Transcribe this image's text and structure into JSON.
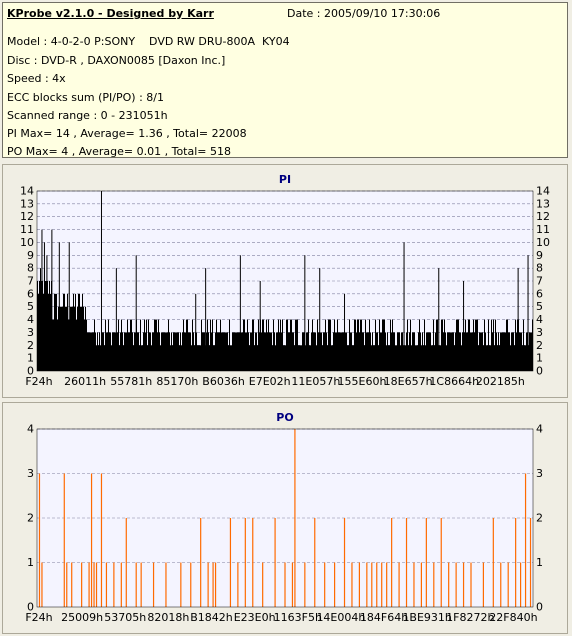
{
  "header": {
    "title": "KProbe v2.1.0 - Designed by Karr",
    "date": "Date : 2005/09/10 17:30:06"
  },
  "info": {
    "model": "Model : 4-0-2-0 P:SONY    DVD RW DRU-800A  KY04",
    "disc": "Disc : DVD-R , DAXON0085 [Daxon Inc.]",
    "speed": "Speed : 4x",
    "ecc": "ECC blocks sum (PI/PO) : 8/1",
    "range": "Scanned range : 0 - 231051h",
    "pi": "PI Max= 14 , Average= 1.36 , Total= 22008",
    "po": "PO Max= 4 , Average= 0.01 , Total= 518"
  },
  "colors": {
    "panel_bg": "#ffffe1",
    "window_bg": "#f0eee4",
    "plot_bg": "#f4f4ff",
    "pi_bar": "#000000",
    "po_bar": "#ff6a00",
    "title": "#000080",
    "grid": "#8080a0"
  },
  "chart_data": [
    {
      "type": "bar",
      "title": "PI",
      "xlabel": "",
      "ylabel": "",
      "ylim": [
        0,
        14
      ],
      "yticks": [
        0,
        1,
        2,
        3,
        4,
        5,
        6,
        7,
        8,
        9,
        10,
        11,
        12,
        13,
        14
      ],
      "xtick_labels": [
        "F24h",
        "26011h",
        "55781h",
        "85170h",
        "B6036h",
        "E7E02h",
        "11E057h",
        "155E60h",
        "18E657h",
        "1C8664h",
        "202185h"
      ],
      "grid": true,
      "dense_profile": [
        {
          "segment": "0%-3%",
          "typical_max": 8,
          "baseline": 5
        },
        {
          "segment": "3%-10%",
          "typical_max": 6,
          "baseline": 4
        },
        {
          "segment": "10%-100%",
          "typical_max": 4,
          "baseline": 2
        }
      ],
      "peaks": [
        {
          "x": 0.01,
          "y": 11
        },
        {
          "x": 0.015,
          "y": 10
        },
        {
          "x": 0.02,
          "y": 9
        },
        {
          "x": 0.03,
          "y": 11
        },
        {
          "x": 0.045,
          "y": 10
        },
        {
          "x": 0.065,
          "y": 10
        },
        {
          "x": 0.13,
          "y": 14
        },
        {
          "x": 0.16,
          "y": 8
        },
        {
          "x": 0.2,
          "y": 9
        },
        {
          "x": 0.32,
          "y": 6
        },
        {
          "x": 0.34,
          "y": 8
        },
        {
          "x": 0.41,
          "y": 9
        },
        {
          "x": 0.45,
          "y": 7
        },
        {
          "x": 0.54,
          "y": 9
        },
        {
          "x": 0.57,
          "y": 8
        },
        {
          "x": 0.62,
          "y": 6
        },
        {
          "x": 0.74,
          "y": 10
        },
        {
          "x": 0.81,
          "y": 8
        },
        {
          "x": 0.86,
          "y": 7
        },
        {
          "x": 0.97,
          "y": 8
        },
        {
          "x": 0.99,
          "y": 9
        }
      ]
    },
    {
      "type": "bar",
      "title": "PO",
      "xlabel": "",
      "ylabel": "",
      "ylim": [
        0,
        4
      ],
      "yticks": [
        0,
        1,
        2,
        3,
        4
      ],
      "xtick_labels": [
        "F24h",
        "25009h",
        "53705h",
        "82018h",
        "B1842h",
        "E23E0h",
        "1163F5h",
        "14E004h",
        "184F64h",
        "1BE931h",
        "1F8272h",
        "22F840h"
      ],
      "grid": true,
      "spikes": [
        {
          "x": 0.005,
          "y": 3
        },
        {
          "x": 0.01,
          "y": 1
        },
        {
          "x": 0.055,
          "y": 3
        },
        {
          "x": 0.06,
          "y": 1
        },
        {
          "x": 0.07,
          "y": 1
        },
        {
          "x": 0.09,
          "y": 1
        },
        {
          "x": 0.105,
          "y": 1
        },
        {
          "x": 0.11,
          "y": 3
        },
        {
          "x": 0.115,
          "y": 1
        },
        {
          "x": 0.12,
          "y": 1
        },
        {
          "x": 0.13,
          "y": 3
        },
        {
          "x": 0.14,
          "y": 1
        },
        {
          "x": 0.155,
          "y": 1
        },
        {
          "x": 0.17,
          "y": 1
        },
        {
          "x": 0.18,
          "y": 2
        },
        {
          "x": 0.2,
          "y": 1
        },
        {
          "x": 0.21,
          "y": 1
        },
        {
          "x": 0.235,
          "y": 1
        },
        {
          "x": 0.26,
          "y": 1
        },
        {
          "x": 0.29,
          "y": 1
        },
        {
          "x": 0.31,
          "y": 1
        },
        {
          "x": 0.33,
          "y": 2
        },
        {
          "x": 0.345,
          "y": 1
        },
        {
          "x": 0.355,
          "y": 1
        },
        {
          "x": 0.36,
          "y": 1
        },
        {
          "x": 0.39,
          "y": 2
        },
        {
          "x": 0.405,
          "y": 1
        },
        {
          "x": 0.42,
          "y": 2
        },
        {
          "x": 0.435,
          "y": 2
        },
        {
          "x": 0.455,
          "y": 1
        },
        {
          "x": 0.48,
          "y": 2
        },
        {
          "x": 0.5,
          "y": 1
        },
        {
          "x": 0.515,
          "y": 1
        },
        {
          "x": 0.52,
          "y": 4
        },
        {
          "x": 0.54,
          "y": 1
        },
        {
          "x": 0.56,
          "y": 2
        },
        {
          "x": 0.58,
          "y": 1
        },
        {
          "x": 0.6,
          "y": 1
        },
        {
          "x": 0.62,
          "y": 2
        },
        {
          "x": 0.635,
          "y": 1
        },
        {
          "x": 0.65,
          "y": 1
        },
        {
          "x": 0.665,
          "y": 1
        },
        {
          "x": 0.675,
          "y": 1
        },
        {
          "x": 0.685,
          "y": 1
        },
        {
          "x": 0.695,
          "y": 1
        },
        {
          "x": 0.705,
          "y": 1
        },
        {
          "x": 0.715,
          "y": 2
        },
        {
          "x": 0.73,
          "y": 1
        },
        {
          "x": 0.745,
          "y": 2
        },
        {
          "x": 0.76,
          "y": 1
        },
        {
          "x": 0.775,
          "y": 1
        },
        {
          "x": 0.785,
          "y": 2
        },
        {
          "x": 0.8,
          "y": 1
        },
        {
          "x": 0.815,
          "y": 2
        },
        {
          "x": 0.83,
          "y": 1
        },
        {
          "x": 0.845,
          "y": 1
        },
        {
          "x": 0.86,
          "y": 1
        },
        {
          "x": 0.875,
          "y": 1
        },
        {
          "x": 0.9,
          "y": 1
        },
        {
          "x": 0.92,
          "y": 2
        },
        {
          "x": 0.935,
          "y": 1
        },
        {
          "x": 0.95,
          "y": 1
        },
        {
          "x": 0.965,
          "y": 2
        },
        {
          "x": 0.975,
          "y": 1
        },
        {
          "x": 0.985,
          "y": 3
        },
        {
          "x": 0.995,
          "y": 2
        }
      ]
    }
  ]
}
